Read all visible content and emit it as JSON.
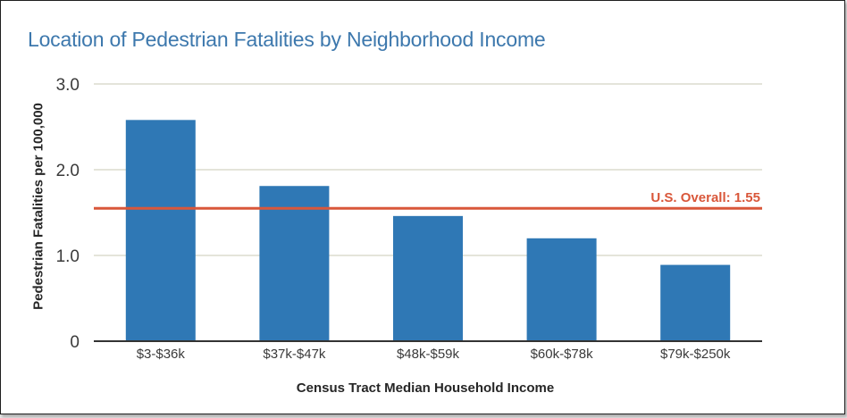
{
  "chart_data": {
    "type": "bar",
    "title": "Location of Pedestrian Fatalities by Neighborhood Income",
    "xlabel": "Census Tract Median Household Income",
    "ylabel": "Pedestrian Fatalities per 100,000",
    "categories": [
      "$3-$36k",
      "$37k-$47k",
      "$48k-$59k",
      "$60k-$78k",
      "$79k-$250k"
    ],
    "values": [
      2.58,
      1.81,
      1.46,
      1.2,
      0.89
    ],
    "ylim": [
      0,
      3.0
    ],
    "yticks": [
      {
        "value": 0,
        "label": "0"
      },
      {
        "value": 1.0,
        "label": "1.0"
      },
      {
        "value": 2.0,
        "label": "2.0"
      },
      {
        "value": 3.0,
        "label": "3.0"
      }
    ],
    "grid": true,
    "reference_line": {
      "value": 1.55,
      "label": "U.S. Overall: 1.55"
    },
    "colors": {
      "bar": "#2f78b5",
      "reference": "#d9573a",
      "title": "#3d78ad",
      "grid": "#c9c9b6",
      "axis": "#333333"
    }
  }
}
